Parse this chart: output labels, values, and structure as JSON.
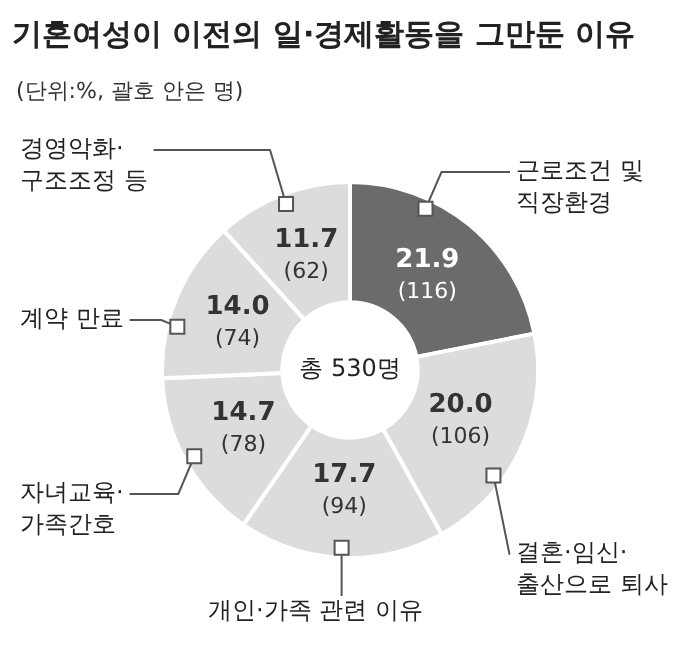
{
  "chart_data": {
    "type": "donut",
    "title": "기혼여성이 이전의 일·경제활동을 그만둔 이유",
    "subtitle": "(단위:%, 괄호 안은 명)",
    "categories": [
      "근로조건 및\n직장환경",
      "결혼·임신·\n출산으로 퇴사",
      "개인·가족 관련 이유",
      "자녀교육·\n가족간호",
      "계약 만료",
      "경영악화·\n구조조정 등"
    ],
    "values": [
      21.9,
      20.0,
      17.7,
      14.7,
      14.0,
      11.7
    ],
    "value_labels": [
      "21.9\n(116)",
      "20.0\n(106)",
      "17.7\n(94)",
      "14.7\n(78)",
      "14.0\n(74)",
      "11.7\n(62)"
    ],
    "colors": [
      "#6b6b6b",
      "#dcdcdc",
      "#dcdcdc",
      "#dcdcdc",
      "#dcdcdc",
      "#dcdcdc"
    ],
    "annotations": [
      "총 530명"
    ],
    "legend": false
  }
}
